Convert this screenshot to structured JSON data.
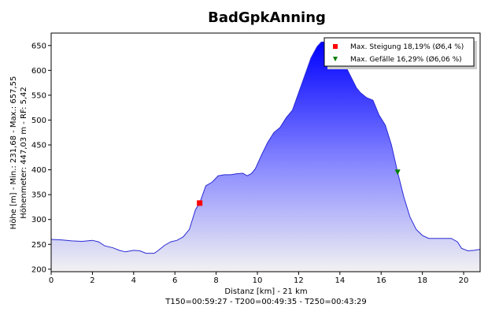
{
  "chart_data": {
    "type": "area",
    "title": "BadGpkAnning",
    "xlabel": "Distanz [km] - 21 km",
    "xlabel_line2": "T150=00:59:27 - T200=00:49:35 - T250=00:43:29",
    "ylabel_line1": "Höhe [m] - Min.: 231,68 - Max.: 657,55",
    "ylabel_line2": "Höhenmeter: 447,03 m - RF: 5,42",
    "xlim": [
      0,
      20.8
    ],
    "ylim": [
      195,
      675
    ],
    "xticks": [
      0,
      2,
      4,
      6,
      8,
      10,
      12,
      14,
      16,
      18,
      20
    ],
    "yticks": [
      200,
      250,
      300,
      350,
      400,
      450,
      500,
      550,
      600,
      650
    ],
    "grid": false,
    "legend_position": "top-right",
    "series": [
      {
        "x": [
          0,
          0.5,
          1,
          1.5,
          2,
          2.3,
          2.6,
          3,
          3.3,
          3.6,
          4,
          4.3,
          4.6,
          5,
          5.2,
          5.5,
          5.8,
          6.1,
          6.4,
          6.7,
          7.0,
          7.2,
          7.5,
          7.8,
          8.1,
          8.4,
          8.7,
          9.0,
          9.3,
          9.5,
          9.7,
          9.9,
          10.2,
          10.5,
          10.8,
          11.1,
          11.4,
          11.7,
          12.0,
          12.3,
          12.6,
          12.9,
          13.1,
          13.3,
          13.6,
          13.9,
          14.2,
          14.5,
          14.8,
          15.0,
          15.3,
          15.6,
          15.9,
          16.2,
          16.5,
          16.8,
          17.1,
          17.4,
          17.7,
          18.0,
          18.3,
          18.6,
          19.0,
          19.4,
          19.7,
          19.9,
          20.2,
          20.5,
          20.8
        ],
        "y": [
          260,
          259,
          257,
          256,
          258,
          255,
          247,
          243,
          238,
          235,
          238,
          237,
          232,
          232,
          238,
          248,
          255,
          258,
          265,
          280,
          320,
          333,
          368,
          375,
          388,
          390,
          390,
          392,
          393,
          388,
          392,
          402,
          430,
          455,
          475,
          485,
          505,
          520,
          555,
          590,
          625,
          648,
          657,
          657,
          650,
          635,
          615,
          590,
          565,
          555,
          545,
          540,
          510,
          490,
          450,
          395,
          345,
          305,
          280,
          268,
          262,
          262,
          262,
          262,
          255,
          242,
          237,
          238,
          240
        ]
      }
    ],
    "annotations": [
      {
        "type": "max_climb",
        "marker": "square",
        "color": "#ff0000",
        "x": 7.2,
        "y": 333,
        "label": "Max. Steigung 18,19% (Ø6,4 %)"
      },
      {
        "type": "max_descent",
        "marker": "triangle-down",
        "color": "#008000",
        "x": 16.8,
        "y": 395,
        "label": "Max. Gefälle 16,29% (Ø6,06 %)"
      }
    ],
    "colors": {
      "area_top": "#0000ff",
      "area_bottom": "#f2f2f2",
      "line": "#2a2ad4",
      "border": "#000000"
    }
  }
}
